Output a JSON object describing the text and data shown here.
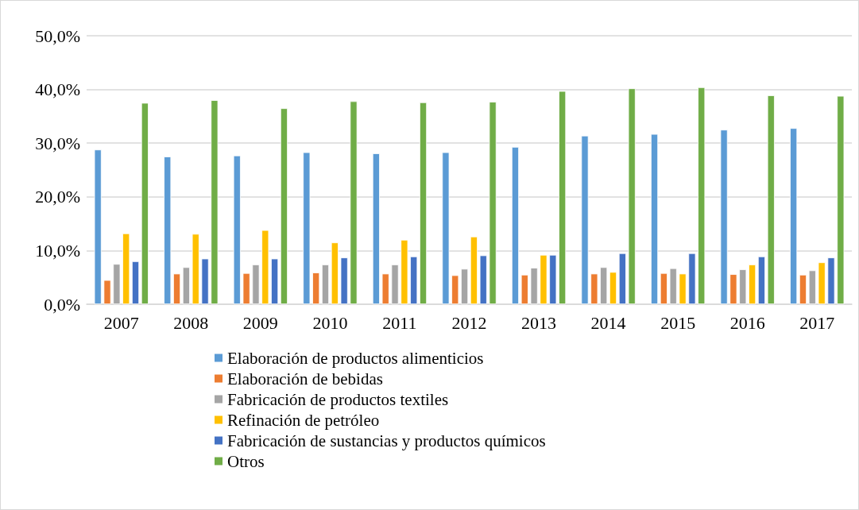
{
  "chart_data": {
    "type": "bar",
    "categories": [
      "2007",
      "2008",
      "2009",
      "2010",
      "2011",
      "2012",
      "2013",
      "2014",
      "2015",
      "2016",
      "2017"
    ],
    "series": [
      {
        "name": "Elaboración de productos alimenticios",
        "color": "#5b9bd5",
        "values": [
          28.8,
          27.5,
          27.7,
          28.3,
          28.1,
          28.3,
          29.3,
          31.4,
          31.7,
          32.5,
          32.8
        ]
      },
      {
        "name": "Elaboración de bebidas",
        "color": "#ed7d31",
        "values": [
          4.5,
          5.7,
          5.8,
          5.9,
          5.7,
          5.4,
          5.5,
          5.7,
          5.8,
          5.6,
          5.5
        ]
      },
      {
        "name": "Fabricación de productos textiles",
        "color": "#a5a5a5",
        "values": [
          7.5,
          6.9,
          7.4,
          7.4,
          7.4,
          6.6,
          6.8,
          6.9,
          6.7,
          6.5,
          6.3
        ]
      },
      {
        "name": "Refinación de petróleo",
        "color": "#ffc000",
        "values": [
          13.2,
          13.1,
          13.8,
          11.5,
          12.0,
          12.6,
          9.2,
          6.0,
          5.7,
          7.4,
          7.8
        ]
      },
      {
        "name": "Fabricación de sustancias y productos químicos",
        "color": "#4472c4",
        "values": [
          8.0,
          8.5,
          8.5,
          8.7,
          8.9,
          9.1,
          9.2,
          9.5,
          9.5,
          8.9,
          8.7
        ]
      },
      {
        "name": "Otros",
        "color": "#70ad47",
        "values": [
          37.5,
          38.0,
          36.5,
          37.8,
          37.6,
          37.7,
          39.7,
          40.2,
          40.4,
          38.9,
          38.8
        ]
      }
    ],
    "ylim": [
      0,
      50
    ],
    "yticks": [
      {
        "value": 0,
        "label": "0,0%"
      },
      {
        "value": 10,
        "label": "10,0%"
      },
      {
        "value": 20,
        "label": "20,0%"
      },
      {
        "value": 30,
        "label": "30,0%"
      },
      {
        "value": 40,
        "label": "40,0%"
      },
      {
        "value": 50,
        "label": "50,0%"
      }
    ],
    "grid": "y",
    "legend": "bottom"
  }
}
